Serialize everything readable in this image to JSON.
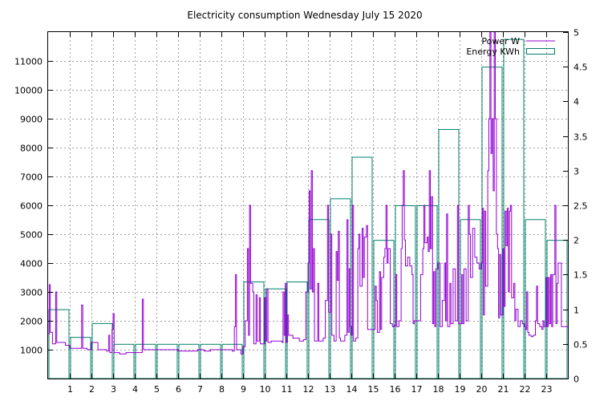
{
  "chart_data": {
    "type": "bar+line",
    "title": "Electricity consumption Wednesday July 15 2020",
    "xlabel": "",
    "ylabel": "",
    "y2label": "",
    "xlim": [
      0,
      24
    ],
    "ylim": [
      0,
      12000
    ],
    "y2lim": [
      0,
      5
    ],
    "grid": true,
    "legend_position": "top-right",
    "x_ticks": [
      1,
      2,
      3,
      4,
      5,
      6,
      7,
      8,
      9,
      10,
      11,
      12,
      13,
      14,
      15,
      16,
      17,
      18,
      19,
      20,
      21,
      22,
      23
    ],
    "y_ticks": [
      1000,
      2000,
      3000,
      4000,
      5000,
      6000,
      7000,
      8000,
      9000,
      10000,
      11000
    ],
    "y2_ticks": [
      0,
      0.5,
      1,
      1.5,
      2,
      2.5,
      3,
      3.5,
      4,
      4.5,
      5
    ],
    "series": [
      {
        "name": "Power W",
        "axis": "left",
        "color": "#9400d3",
        "style": "step-line",
        "points": [
          [
            0.0,
            1550
          ],
          [
            0.05,
            3250
          ],
          [
            0.1,
            1600
          ],
          [
            0.2,
            1200
          ],
          [
            0.35,
            3000
          ],
          [
            0.4,
            1250
          ],
          [
            0.6,
            1250
          ],
          [
            0.8,
            1150
          ],
          [
            1.0,
            1050
          ],
          [
            1.5,
            1050
          ],
          [
            1.55,
            2550
          ],
          [
            1.6,
            1050
          ],
          [
            1.8,
            1000
          ],
          [
            2.0,
            1250
          ],
          [
            2.3,
            1000
          ],
          [
            2.7,
            950
          ],
          [
            2.8,
            1500
          ],
          [
            2.85,
            900
          ],
          [
            2.95,
            1700
          ],
          [
            3.0,
            2250
          ],
          [
            3.05,
            900
          ],
          [
            3.3,
            850
          ],
          [
            3.6,
            900
          ],
          [
            4.0,
            900
          ],
          [
            4.35,
            2750
          ],
          [
            4.4,
            1000
          ],
          [
            4.8,
            1000
          ],
          [
            5.2,
            1000
          ],
          [
            5.5,
            1000
          ],
          [
            6.0,
            950
          ],
          [
            6.5,
            950
          ],
          [
            6.9,
            1000
          ],
          [
            7.2,
            950
          ],
          [
            7.5,
            1000
          ],
          [
            7.9,
            1000
          ],
          [
            8.2,
            1000
          ],
          [
            8.5,
            950
          ],
          [
            8.6,
            1800
          ],
          [
            8.65,
            3600
          ],
          [
            8.7,
            1000
          ],
          [
            8.9,
            850
          ],
          [
            9.0,
            1100
          ],
          [
            9.1,
            2000
          ],
          [
            9.2,
            4500
          ],
          [
            9.25,
            1500
          ],
          [
            9.3,
            6000
          ],
          [
            9.35,
            3300
          ],
          [
            9.45,
            3000
          ],
          [
            9.5,
            1200
          ],
          [
            9.6,
            2900
          ],
          [
            9.65,
            1300
          ],
          [
            9.75,
            2800
          ],
          [
            9.8,
            1200
          ],
          [
            10.0,
            2800
          ],
          [
            10.05,
            1300
          ],
          [
            10.1,
            3100
          ],
          [
            10.15,
            1250
          ],
          [
            10.3,
            1300
          ],
          [
            10.6,
            1300
          ],
          [
            10.8,
            1250
          ],
          [
            10.85,
            3000
          ],
          [
            10.9,
            1500
          ],
          [
            10.95,
            3300
          ],
          [
            11.0,
            1250
          ],
          [
            11.05,
            2200
          ],
          [
            11.1,
            1500
          ],
          [
            11.3,
            1400
          ],
          [
            11.6,
            1300
          ],
          [
            11.8,
            1350
          ],
          [
            11.9,
            3000
          ],
          [
            12.0,
            4000
          ],
          [
            12.05,
            6500
          ],
          [
            12.1,
            3100
          ],
          [
            12.15,
            7200
          ],
          [
            12.2,
            3000
          ],
          [
            12.25,
            4500
          ],
          [
            12.3,
            1300
          ],
          [
            12.45,
            3300
          ],
          [
            12.5,
            1300
          ],
          [
            12.7,
            1400
          ],
          [
            12.8,
            2700
          ],
          [
            12.9,
            6000
          ],
          [
            12.95,
            2300
          ],
          [
            13.05,
            5000
          ],
          [
            13.1,
            1500
          ],
          [
            13.2,
            1300
          ],
          [
            13.3,
            4400
          ],
          [
            13.35,
            3400
          ],
          [
            13.4,
            5100
          ],
          [
            13.45,
            1400
          ],
          [
            13.5,
            1300
          ],
          [
            13.7,
            1500
          ],
          [
            13.8,
            5500
          ],
          [
            13.85,
            1600
          ],
          [
            13.9,
            3800
          ],
          [
            13.95,
            1800
          ],
          [
            14.0,
            1500
          ],
          [
            14.05,
            6000
          ],
          [
            14.1,
            1300
          ],
          [
            14.2,
            1400
          ],
          [
            14.3,
            4500
          ],
          [
            14.35,
            5000
          ],
          [
            14.4,
            3200
          ],
          [
            14.5,
            5200
          ],
          [
            14.55,
            3500
          ],
          [
            14.6,
            4900
          ],
          [
            14.7,
            5300
          ],
          [
            14.75,
            1700
          ],
          [
            14.8,
            1700
          ],
          [
            14.9,
            1700
          ],
          [
            15.0,
            1700
          ],
          [
            15.1,
            3200
          ],
          [
            15.15,
            2700
          ],
          [
            15.2,
            1600
          ],
          [
            15.3,
            3700
          ],
          [
            15.35,
            1700
          ],
          [
            15.4,
            3500
          ],
          [
            15.5,
            4200
          ],
          [
            15.55,
            4500
          ],
          [
            15.6,
            6000
          ],
          [
            15.65,
            4000
          ],
          [
            15.7,
            4500
          ],
          [
            15.8,
            1900
          ],
          [
            15.9,
            1800
          ],
          [
            16.0,
            1850
          ],
          [
            16.05,
            3600
          ],
          [
            16.1,
            1800
          ],
          [
            16.2,
            2000
          ],
          [
            16.3,
            4500
          ],
          [
            16.35,
            6000
          ],
          [
            16.4,
            7200
          ],
          [
            16.45,
            4800
          ],
          [
            16.5,
            3900
          ],
          [
            16.6,
            4200
          ],
          [
            16.7,
            3900
          ],
          [
            16.8,
            3600
          ],
          [
            16.85,
            1900
          ],
          [
            16.9,
            2000
          ],
          [
            17.0,
            2000
          ],
          [
            17.1,
            2000
          ],
          [
            17.2,
            3600
          ],
          [
            17.3,
            4500
          ],
          [
            17.35,
            6000
          ],
          [
            17.4,
            4700
          ],
          [
            17.5,
            4900
          ],
          [
            17.55,
            4400
          ],
          [
            17.6,
            7200
          ],
          [
            17.65,
            4500
          ],
          [
            17.7,
            6300
          ],
          [
            17.75,
            1900
          ],
          [
            17.8,
            3700
          ],
          [
            17.85,
            1800
          ],
          [
            17.9,
            3800
          ],
          [
            18.0,
            4000
          ],
          [
            18.1,
            1800
          ],
          [
            18.2,
            2700
          ],
          [
            18.3,
            4000
          ],
          [
            18.35,
            2000
          ],
          [
            18.4,
            5700
          ],
          [
            18.45,
            1800
          ],
          [
            18.55,
            3300
          ],
          [
            18.6,
            1900
          ],
          [
            18.7,
            3800
          ],
          [
            18.8,
            2000
          ],
          [
            18.9,
            6000
          ],
          [
            18.95,
            1900
          ],
          [
            19.0,
            1900
          ],
          [
            19.1,
            3600
          ],
          [
            19.15,
            1900
          ],
          [
            19.2,
            3800
          ],
          [
            19.3,
            2000
          ],
          [
            19.4,
            6000
          ],
          [
            19.45,
            5000
          ],
          [
            19.5,
            3500
          ],
          [
            19.6,
            5200
          ],
          [
            19.7,
            4200
          ],
          [
            19.8,
            4000
          ],
          [
            19.9,
            3800
          ],
          [
            20.0,
            4000
          ],
          [
            20.05,
            5900
          ],
          [
            20.1,
            2200
          ],
          [
            20.15,
            5800
          ],
          [
            20.2,
            3200
          ],
          [
            20.3,
            7200
          ],
          [
            20.35,
            9000
          ],
          [
            20.4,
            12000
          ],
          [
            20.45,
            7800
          ],
          [
            20.5,
            9000
          ],
          [
            20.55,
            6500
          ],
          [
            20.6,
            12000
          ],
          [
            20.65,
            9000
          ],
          [
            20.7,
            5000
          ],
          [
            20.75,
            4500
          ],
          [
            20.8,
            2100
          ],
          [
            20.85,
            4300
          ],
          [
            20.9,
            2200
          ],
          [
            21.0,
            4500
          ],
          [
            21.05,
            2500
          ],
          [
            21.1,
            5800
          ],
          [
            21.15,
            4600
          ],
          [
            21.2,
            5900
          ],
          [
            21.25,
            3000
          ],
          [
            21.3,
            5800
          ],
          [
            21.35,
            6000
          ],
          [
            21.4,
            2800
          ],
          [
            21.5,
            3300
          ],
          [
            21.55,
            2000
          ],
          [
            21.6,
            2400
          ],
          [
            21.7,
            1800
          ],
          [
            21.8,
            2000
          ],
          [
            21.9,
            1900
          ],
          [
            22.0,
            1800
          ],
          [
            22.05,
            1700
          ],
          [
            22.1,
            3000
          ],
          [
            22.15,
            1600
          ],
          [
            22.2,
            1500
          ],
          [
            22.3,
            1450
          ],
          [
            22.4,
            1500
          ],
          [
            22.5,
            2000
          ],
          [
            22.55,
            3200
          ],
          [
            22.6,
            1900
          ],
          [
            22.7,
            1800
          ],
          [
            22.8,
            1700
          ],
          [
            22.85,
            2000
          ],
          [
            22.9,
            1800
          ],
          [
            23.0,
            3500
          ],
          [
            23.05,
            1800
          ],
          [
            23.1,
            3500
          ],
          [
            23.15,
            1900
          ],
          [
            23.2,
            3600
          ],
          [
            23.25,
            1800
          ],
          [
            23.3,
            3600
          ],
          [
            23.4,
            6000
          ],
          [
            23.45,
            1900
          ],
          [
            23.5,
            3300
          ],
          [
            23.55,
            4000
          ],
          [
            23.6,
            4000
          ],
          [
            23.7,
            1800
          ],
          [
            24.0,
            1800
          ]
        ]
      },
      {
        "name": "Energy KWh",
        "axis": "right",
        "color": "#00806a",
        "style": "bars",
        "categories": [
          "0",
          "1",
          "2",
          "3",
          "4",
          "5",
          "6",
          "7",
          "8",
          "9",
          "10",
          "11",
          "12",
          "13",
          "14",
          "15",
          "16",
          "17",
          "18",
          "19",
          "20",
          "21",
          "22",
          "23"
        ],
        "values": [
          1.0,
          0.6,
          0.8,
          0.5,
          0.5,
          0.5,
          0.5,
          0.5,
          0.5,
          1.4,
          1.3,
          1.4,
          2.3,
          2.6,
          3.2,
          2.0,
          2.5,
          2.5,
          3.6,
          2.3,
          4.5,
          4.9,
          2.3,
          2.0
        ]
      }
    ]
  }
}
